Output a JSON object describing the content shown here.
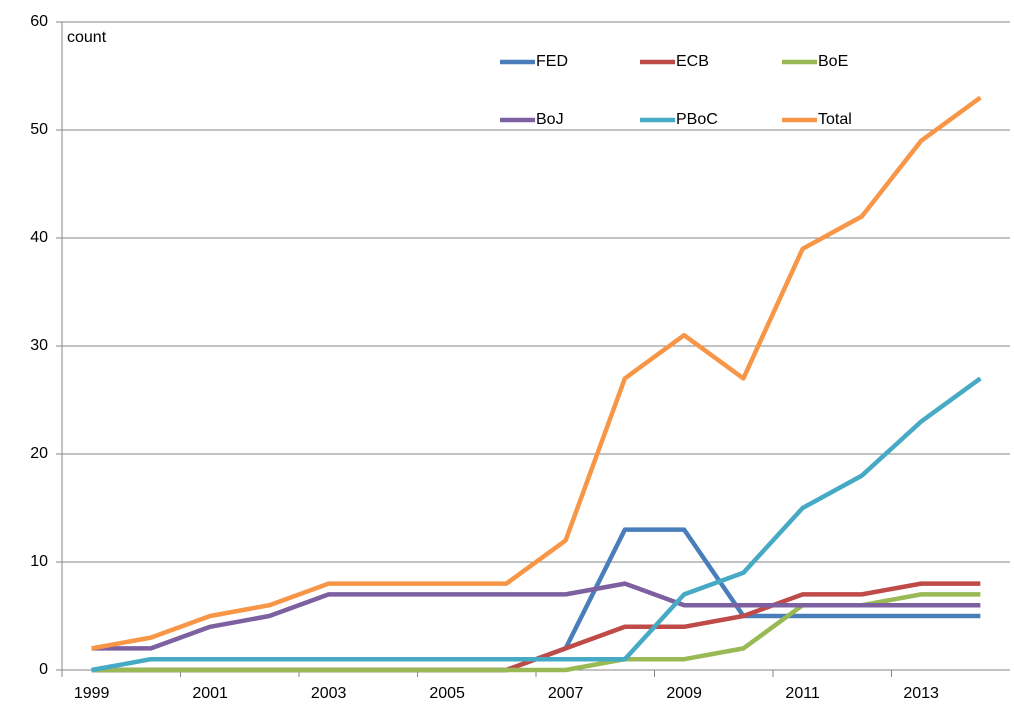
{
  "chart_data": {
    "type": "line",
    "y_label": "count",
    "categories": [
      "1999",
      null,
      "2001",
      null,
      "2003",
      null,
      "2005",
      null,
      "2007",
      null,
      "2009",
      null,
      "2011",
      null,
      "2013",
      null
    ],
    "series": [
      {
        "name": "FED",
        "color": "#4a7ebb",
        "values": [
          0,
          0,
          0,
          0,
          0,
          0,
          0,
          0,
          2,
          13,
          13,
          5,
          5,
          5,
          5,
          5
        ]
      },
      {
        "name": "ECB",
        "color": "#be4b48",
        "values": [
          0,
          0,
          0,
          0,
          0,
          0,
          0,
          0,
          2,
          4,
          4,
          5,
          7,
          7,
          8,
          8
        ]
      },
      {
        "name": "BoE",
        "color": "#98b954",
        "values": [
          0,
          0,
          0,
          0,
          0,
          0,
          0,
          0,
          0,
          1,
          1,
          2,
          6,
          6,
          7,
          7
        ]
      },
      {
        "name": "BoJ",
        "color": "#7d60a0",
        "values": [
          2,
          2,
          4,
          5,
          7,
          7,
          7,
          7,
          7,
          8,
          6,
          6,
          6,
          6,
          6,
          6
        ]
      },
      {
        "name": "PBoC",
        "color": "#46aac5",
        "values": [
          0,
          1,
          1,
          1,
          1,
          1,
          1,
          1,
          1,
          1,
          7,
          9,
          15,
          18,
          23,
          27
        ]
      },
      {
        "name": "Total",
        "color": "#f79646",
        "values": [
          2,
          3,
          5,
          6,
          8,
          8,
          8,
          8,
          12,
          27,
          31,
          27,
          39,
          42,
          49,
          53
        ]
      }
    ],
    "ylim": [
      0,
      60
    ],
    "yticks": [
      0,
      10,
      20,
      30,
      40,
      50,
      60
    ],
    "grid": true,
    "legend": "top-right"
  }
}
